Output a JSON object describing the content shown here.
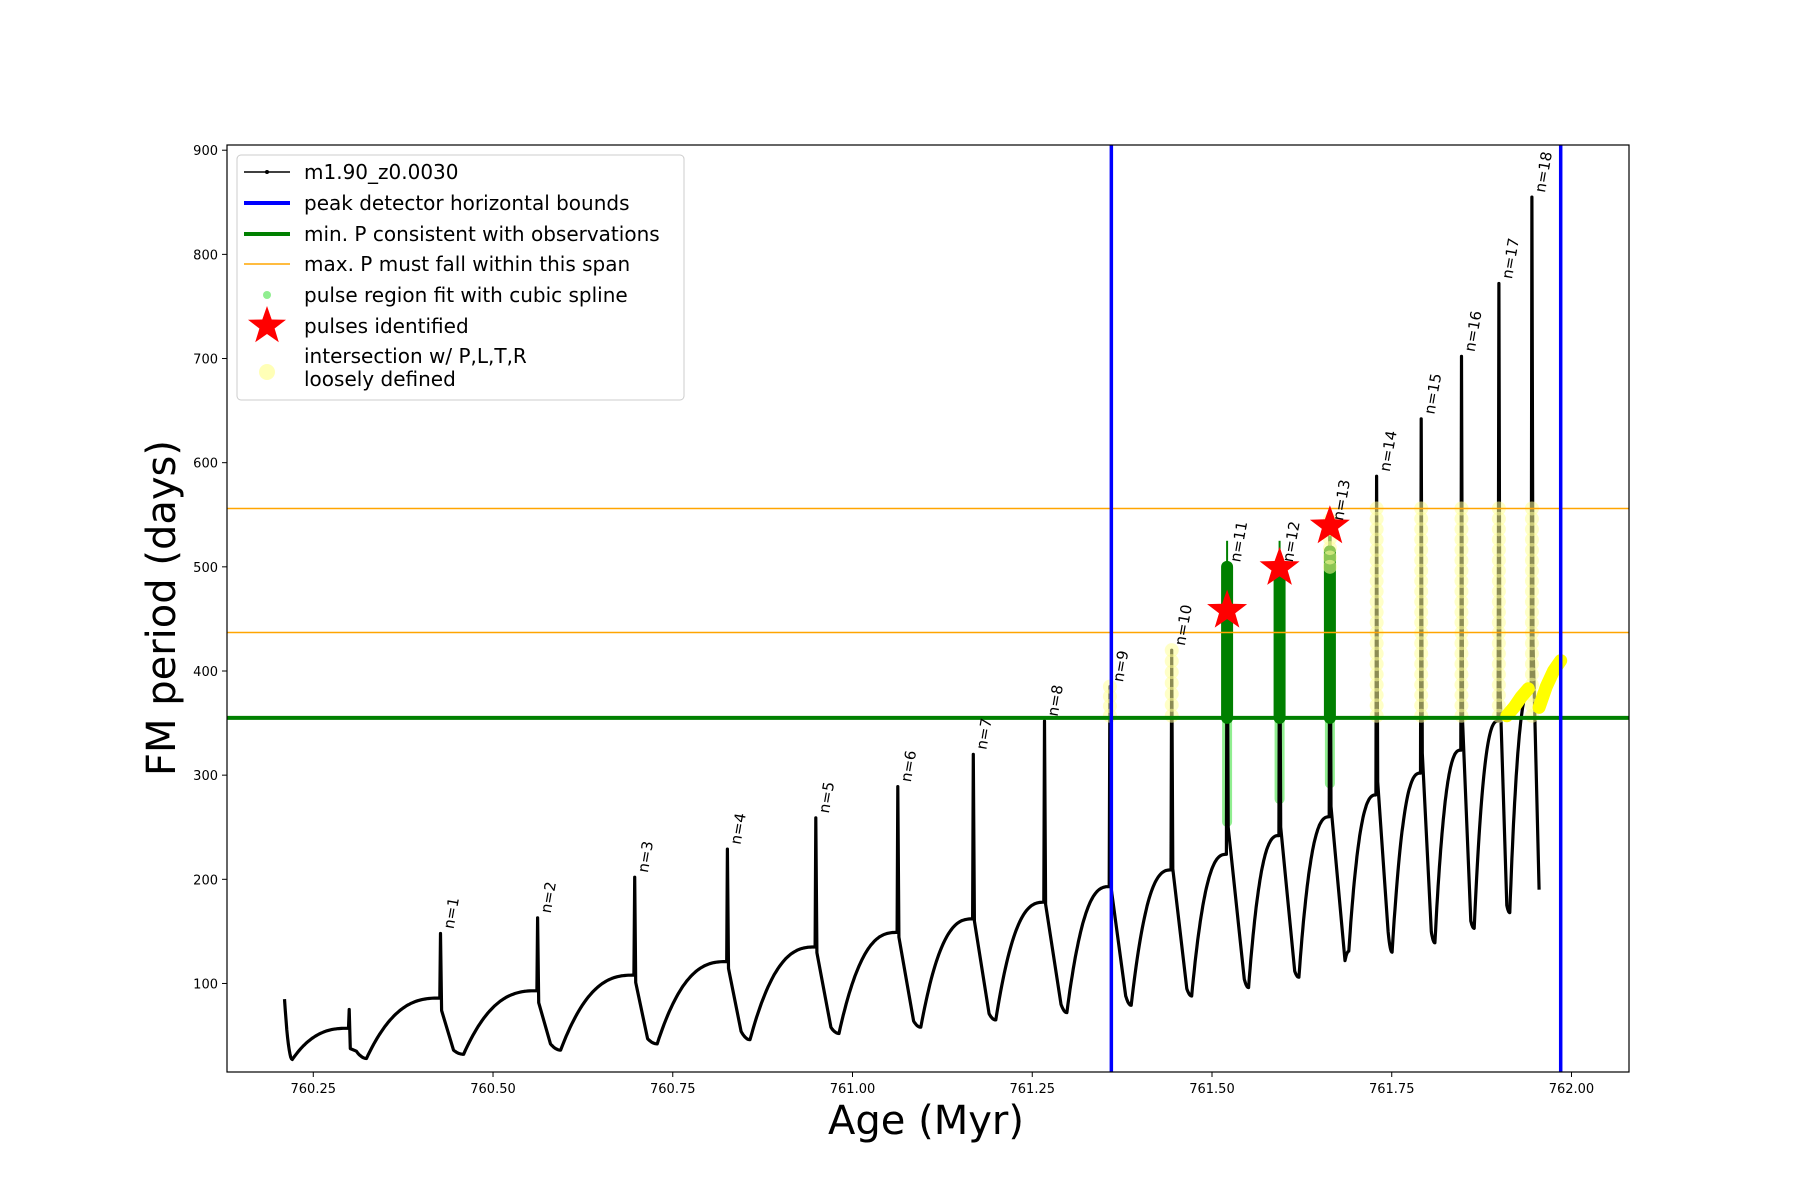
{
  "chart_data": {
    "type": "line",
    "xlabel": "Age (Myr)",
    "ylabel": "FM period (days)",
    "xlim": [
      760.13,
      762.08
    ],
    "ylim": [
      15,
      905
    ],
    "x_ticks": [
      760.25,
      760.5,
      760.75,
      761.0,
      761.25,
      761.5,
      761.75,
      762.0
    ],
    "x_tick_labels": [
      "760.25",
      "760.50",
      "760.75",
      "761.00",
      "761.25",
      "761.50",
      "761.75",
      "762.00"
    ],
    "y_ticks": [
      100,
      200,
      300,
      400,
      500,
      600,
      700,
      800,
      900
    ],
    "y_tick_labels": [
      "100",
      "200",
      "300",
      "400",
      "500",
      "600",
      "700",
      "800",
      "900"
    ],
    "grid": false,
    "legend_position": "top-left",
    "legend": [
      {
        "label": "m1.90_z0.0030",
        "kind": "line-dot",
        "color": "#000000"
      },
      {
        "label": "peak detector horizontal bounds",
        "kind": "line",
        "color": "#0000ff"
      },
      {
        "label": "min. P consistent with observations",
        "kind": "line",
        "color": "#008000"
      },
      {
        "label": "max. P must fall within this span",
        "kind": "thin-line",
        "color": "#ffa500"
      },
      {
        "label": "pulse region fit with cubic spline",
        "kind": "dot",
        "color": "#90ee90"
      },
      {
        "label": "pulses identified",
        "kind": "star",
        "color": "#ff0000"
      },
      {
        "label": "intersection w/ P,L,T,R",
        "label2": "loosely defined",
        "kind": "big-dot",
        "color": "#ffff99"
      }
    ],
    "vertical_lines": {
      "x": [
        761.36,
        761.985
      ],
      "color": "#0000ff"
    },
    "min_period_line": {
      "y": 355,
      "color": "#008000"
    },
    "max_period_span": {
      "y": [
        437,
        556
      ],
      "color": "#ffa500"
    },
    "series_name": "m1.90_z0.0030",
    "series_color": "#000000",
    "start": {
      "x": 760.21,
      "y": 85
    },
    "cycles": [
      {
        "n": null,
        "x_peak": 760.3,
        "p_peak": 75,
        "p_before": 57,
        "dip": 27,
        "x_end": 760.31,
        "p_end": 35
      },
      {
        "n": "1",
        "x_peak": 760.427,
        "p_peak": 148,
        "p_before": 86,
        "dip": 28,
        "x_end": 760.445,
        "p_end": 36
      },
      {
        "n": "2",
        "x_peak": 760.562,
        "p_peak": 163,
        "p_before": 93,
        "dip": 32,
        "x_end": 760.58,
        "p_end": 42
      },
      {
        "n": "3",
        "x_peak": 760.697,
        "p_peak": 202,
        "p_before": 108,
        "dip": 36,
        "x_end": 760.715,
        "p_end": 47
      },
      {
        "n": "4",
        "x_peak": 760.826,
        "p_peak": 229,
        "p_before": 121,
        "dip": 42,
        "x_end": 760.845,
        "p_end": 54
      },
      {
        "n": "5",
        "x_peak": 760.949,
        "p_peak": 259,
        "p_before": 135,
        "dip": 46,
        "x_end": 760.97,
        "p_end": 58
      },
      {
        "n": "6",
        "x_peak": 761.063,
        "p_peak": 289,
        "p_before": 149,
        "dip": 52,
        "x_end": 761.085,
        "p_end": 64
      },
      {
        "n": "7",
        "x_peak": 761.168,
        "p_peak": 320,
        "p_before": 162,
        "dip": 58,
        "x_end": 761.19,
        "p_end": 71
      },
      {
        "n": "8",
        "x_peak": 761.267,
        "p_peak": 352,
        "p_before": 178,
        "dip": 65,
        "x_end": 761.29,
        "p_end": 80
      },
      {
        "n": "9",
        "x_peak": 761.358,
        "p_peak": 385,
        "p_before": 193,
        "dip": 72,
        "x_end": 761.38,
        "p_end": 88
      },
      {
        "n": "10",
        "x_peak": 761.444,
        "p_peak": 420,
        "p_before": 209,
        "dip": 79,
        "x_end": 761.465,
        "p_end": 95
      },
      {
        "n": "11",
        "x_peak": 761.521,
        "p_peak": 500,
        "p_before": 224,
        "dip": 88,
        "x_end": 761.545,
        "p_end": 104
      },
      {
        "n": "12",
        "x_peak": 761.594,
        "p_peak": 500,
        "p_before": 242,
        "dip": 96,
        "x_end": 761.615,
        "p_end": 112
      },
      {
        "n": "13",
        "x_peak": 761.664,
        "p_peak": 540,
        "p_before": 260,
        "dip": 106,
        "x_end": 761.685,
        "p_end": 122
      },
      {
        "n": "14",
        "x_peak": 761.729,
        "p_peak": 587,
        "p_before": 281,
        "dip": 131,
        "x_end": 761.745,
        "p_end": 150
      },
      {
        "n": "15",
        "x_peak": 761.791,
        "p_peak": 642,
        "p_before": 302,
        "dip": 130,
        "x_end": 761.805,
        "p_end": 150
      },
      {
        "n": "16",
        "x_peak": 761.847,
        "p_peak": 702,
        "p_before": 324,
        "dip": 139,
        "x_end": 761.86,
        "p_end": 160
      },
      {
        "n": "17",
        "x_peak": 761.899,
        "p_peak": 772,
        "p_before": 352,
        "dip": 153,
        "x_end": 761.91,
        "p_end": 175
      },
      {
        "n": "18",
        "x_peak": 761.945,
        "p_peak": 855,
        "p_before": 385,
        "dip": 168,
        "x_end": 761.955,
        "p_end": 190
      }
    ],
    "pulse_regions": [
      {
        "x": 761.521,
        "y_min": 255,
        "y_max": 500
      },
      {
        "x": 761.594,
        "y_min": 277,
        "y_max": 500
      },
      {
        "x": 761.664,
        "y_min": 292,
        "y_max": 500
      }
    ],
    "spline_fits": [
      {
        "x": 761.521,
        "y_min": 355,
        "y_max": 525
      },
      {
        "x": 761.594,
        "y_min": 355,
        "y_max": 525
      },
      {
        "x": 761.664,
        "y_min": 355,
        "y_max": 540
      }
    ],
    "pulses_identified": [
      {
        "x": 761.521,
        "y": 458
      },
      {
        "x": 761.594,
        "y": 499
      },
      {
        "x": 761.664,
        "y": 539
      }
    ],
    "intersections": [
      {
        "x": 761.358,
        "y_min": 357,
        "y_max": 385
      },
      {
        "x": 761.444,
        "y_min": 357,
        "y_max": 420
      },
      {
        "x": 761.664,
        "y_min": 500,
        "y_max": 545
      },
      {
        "x": 761.729,
        "y_min": 357,
        "y_max": 556
      },
      {
        "x": 761.791,
        "y_min": 357,
        "y_max": 556
      },
      {
        "x": 761.847,
        "y_min": 357,
        "y_max": 556
      },
      {
        "x": 761.899,
        "y_min": 357,
        "y_max": 556
      },
      {
        "x": 761.945,
        "y_min": 357,
        "y_max": 556
      }
    ],
    "intersection_branches": [
      {
        "x": [
          761.91,
          761.92,
          761.93,
          761.94
        ],
        "y": [
          357,
          365,
          375,
          383
        ]
      },
      {
        "x": [
          761.955,
          761.965,
          761.975,
          761.985
        ],
        "y": [
          365,
          385,
          400,
          410
        ]
      }
    ]
  }
}
